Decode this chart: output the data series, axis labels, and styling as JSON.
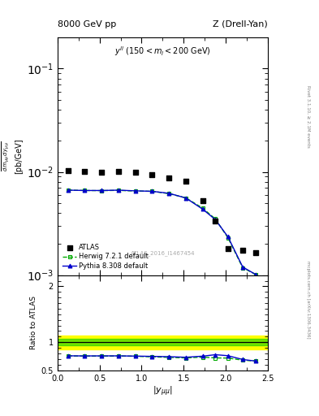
{
  "title_left": "8000 GeV pp",
  "title_right": "Z (Drell-Yan)",
  "watermark": "ATLAS_2016_I1467454",
  "right_label": "Rivet 3.1.10, ≥ 2.1M events",
  "arxiv_label": "mcplots.cern.ch [arXiv:1306.3436]",
  "ylabel_ratio": "Ratio to ATLAS",
  "xlabel": "|y_{mumu}|",
  "atlas_x": [
    0.125,
    0.325,
    0.525,
    0.725,
    0.925,
    1.125,
    1.325,
    1.525,
    1.725,
    1.875,
    2.025,
    2.2,
    2.35
  ],
  "atlas_y": [
    0.0103,
    0.0101,
    0.01,
    0.0101,
    0.00985,
    0.00945,
    0.0087,
    0.0081,
    0.0053,
    0.00335,
    0.0018,
    0.00175,
    0.00165
  ],
  "herwig_x": [
    0.125,
    0.325,
    0.525,
    0.725,
    0.925,
    1.125,
    1.325,
    1.525,
    1.725,
    1.875,
    2.025,
    2.2,
    2.35
  ],
  "herwig_y": [
    0.00665,
    0.0066,
    0.00658,
    0.00662,
    0.00652,
    0.00648,
    0.00615,
    0.0056,
    0.00445,
    0.0035,
    0.0023,
    0.00118,
    0.00102
  ],
  "pythia_x": [
    0.125,
    0.325,
    0.525,
    0.725,
    0.925,
    1.125,
    1.325,
    1.525,
    1.725,
    1.875,
    2.025,
    2.2,
    2.35
  ],
  "pythia_y": [
    0.00665,
    0.0066,
    0.0066,
    0.00665,
    0.00655,
    0.00648,
    0.0062,
    0.00558,
    0.00435,
    0.00345,
    0.00235,
    0.0012,
    0.00102
  ],
  "ratio_herwig_y": [
    0.756,
    0.752,
    0.752,
    0.754,
    0.75,
    0.74,
    0.73,
    0.72,
    0.735,
    0.72,
    0.718,
    0.68,
    0.665
  ],
  "ratio_pythia_y": [
    0.758,
    0.756,
    0.757,
    0.757,
    0.753,
    0.748,
    0.742,
    0.732,
    0.752,
    0.778,
    0.76,
    0.692,
    0.665
  ],
  "band_y_low_green": 0.94,
  "band_y_high_green": 1.06,
  "band_y_low_yellow": 0.88,
  "band_y_high_yellow": 1.12,
  "atlas_color": "#000000",
  "herwig_color": "#00aa00",
  "pythia_color": "#0000cc",
  "band_green_color": "#00cc00",
  "band_yellow_color": "#ffff00",
  "xlim": [
    0.0,
    2.5
  ],
  "ylim_main": [
    0.001,
    0.2
  ],
  "ylim_ratio": [
    0.5,
    2.2
  ],
  "yticks_ratio": [
    0.5,
    1.0,
    2.0
  ],
  "ytick_labels_ratio": [
    "0.5",
    "1",
    "2"
  ],
  "xticks": [
    0.0,
    0.5,
    1.0,
    1.5,
    2.0,
    2.5
  ]
}
